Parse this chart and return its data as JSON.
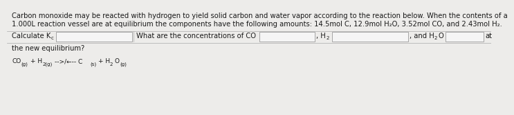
{
  "background_color": "#edecea",
  "text_color": "#1a1a1a",
  "paragraph1": "Carbon monoxide may be reacted with hydrogen to yield solid carbon and water vapor according to the reaction below. When the contents of a",
  "paragraph2": "1.000L reaction vessel are at equilibrium the components have the following amounts: 14.5mol C, 12.9mol H₂O, 3.52mol CO, and 2.43mol H₂.",
  "box_color": "#f5f5f5",
  "box_border": "#888888",
  "font_size_para": 7.2,
  "font_size_body": 7.2,
  "font_size_eq": 6.5,
  "font_size_sub": 5.0
}
